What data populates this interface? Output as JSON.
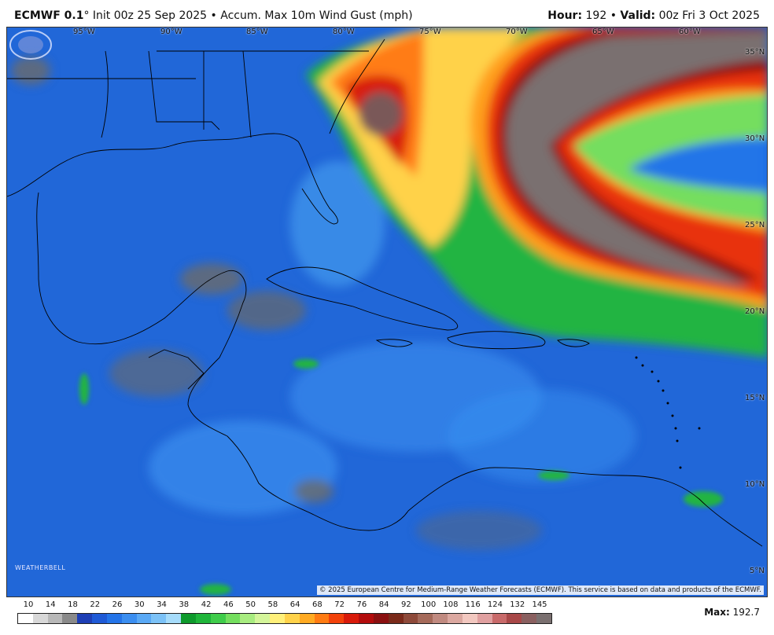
{
  "header": {
    "model": "ECMWF 0.1",
    "degree": "°",
    "init": "Init 00z 25 Sep 2025",
    "product": "Accum. Max 10m Wind Gust (mph)",
    "hour_label": "Hour:",
    "hour_value": "192",
    "valid_label": "Valid:",
    "valid_value": "00z Fri 3 Oct 2025",
    "bullet": "•"
  },
  "map": {
    "longitude_labels": [
      "95°W",
      "90°W",
      "85°W",
      "80°W",
      "75°W",
      "70°W",
      "65°W",
      "60°W"
    ],
    "latitude_labels": [
      "35°N",
      "30°N",
      "25°N",
      "20°N",
      "15°N",
      "10°N",
      "5°N"
    ],
    "copyright": "© 2025 European Centre for Medium-Range Weather Forecasts (ECMWF). This service is based on data and products of the ECMWF.",
    "logo_text": "WEATHERBELL"
  },
  "legend": {
    "ticks": [
      "10",
      "14",
      "18",
      "22",
      "26",
      "30",
      "34",
      "38",
      "42",
      "46",
      "50",
      "58",
      "64",
      "68",
      "72",
      "76",
      "84",
      "92",
      "100",
      "108",
      "116",
      "124",
      "132",
      "145"
    ],
    "colors": [
      "#ffffff",
      "#d8d8d8",
      "#b8b8b8",
      "#8a8a8a",
      "#1e3fb5",
      "#1f5ad6",
      "#2474e8",
      "#3b8ef0",
      "#5aa9f5",
      "#7cc2f7",
      "#a6dcfb",
      "#0e9a2c",
      "#1fb53a",
      "#3fcc4a",
      "#74de5e",
      "#a8ec80",
      "#d4f59a",
      "#fff07a",
      "#ffd24a",
      "#ffaa22",
      "#ff7b12",
      "#f2420a",
      "#d81a0a",
      "#b30c0c",
      "#8a1010",
      "#7a2a1a",
      "#8e4a3a",
      "#a56a5a",
      "#c08a80",
      "#dba8a0",
      "#f2c8c0",
      "#e0a0a0",
      "#c86a6a",
      "#a84848",
      "#8a6060",
      "#7a7070"
    ]
  },
  "max": {
    "label": "Max:",
    "value": "192.7"
  }
}
